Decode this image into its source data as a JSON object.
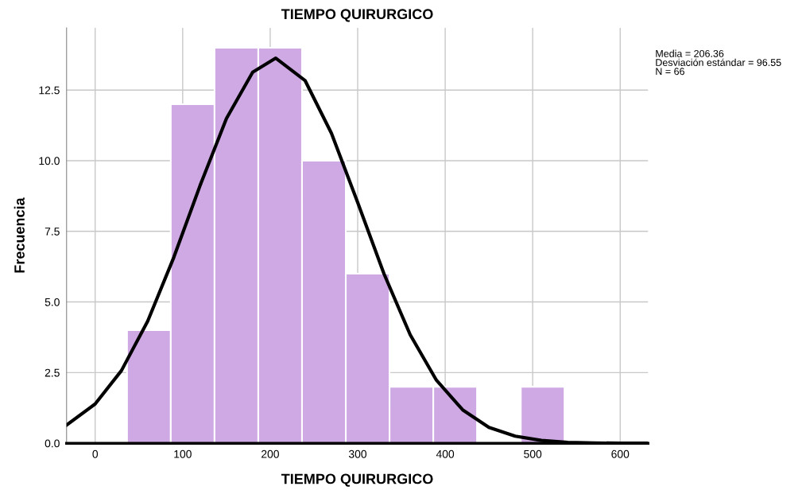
{
  "chart_data": {
    "type": "histogram",
    "title": "TIEMPO QUIRURGICO",
    "xlabel": "TIEMPO QUIRURGICO",
    "ylabel": "Frecuencia",
    "bins": [
      36.4,
      86.4,
      136.4,
      186.4,
      236.4,
      286.4,
      336.4,
      386.4,
      436.4,
      486.4,
      536.4
    ],
    "values": [
      4,
      12,
      14,
      14,
      10,
      6,
      2,
      2,
      0,
      2
    ],
    "color": "#cfa9e3",
    "series": [
      {
        "type": "line",
        "color": "#000000",
        "x": [
          -32.7,
          0,
          30,
          60,
          90,
          120,
          150,
          180,
          206.4,
          240,
          270,
          300,
          330,
          360,
          390,
          420,
          450,
          480,
          510,
          540,
          570,
          600,
          631.8
        ],
        "values": [
          0.64,
          1.39,
          2.57,
          4.32,
          6.59,
          9.13,
          11.49,
          13.13,
          13.63,
          12.83,
          10.97,
          8.52,
          6.0,
          3.84,
          2.23,
          1.18,
          0.56,
          0.25,
          0.1,
          0.03,
          0.01,
          0.0,
          0.0
        ]
      }
    ],
    "xlim": [
      -32.7,
      631.8
    ],
    "xticks": [
      0,
      100,
      200,
      300,
      400,
      500,
      600
    ],
    "ylim": [
      0,
      14.7
    ],
    "yticks": [
      {
        "value": 0,
        "label": "0.0"
      },
      {
        "value": 2.5,
        "label": "2.5"
      },
      {
        "value": 5,
        "label": "5.0"
      },
      {
        "value": 7.5,
        "label": "7.5"
      },
      {
        "value": 10,
        "label": "10.0"
      },
      {
        "value": 12.5,
        "label": "12.5"
      }
    ],
    "grid": true,
    "annotations": [
      "Media = 206.36\nDesviación estándar = 96.55\nN = 66"
    ]
  }
}
